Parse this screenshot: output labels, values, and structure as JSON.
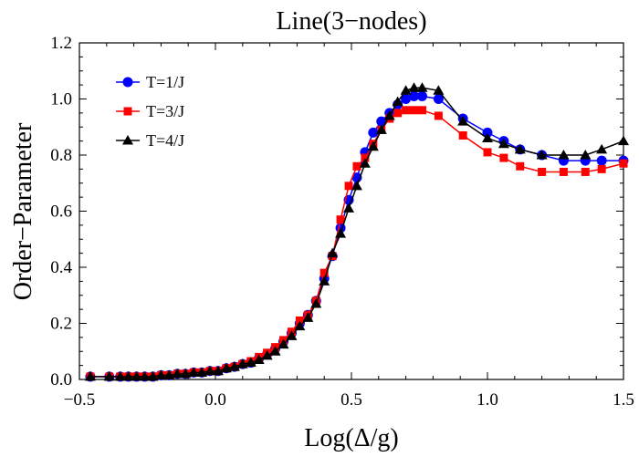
{
  "chart_data": {
    "type": "line",
    "title": "Line(3−nodes)",
    "xlabel": "Log(Δ/g)",
    "ylabel": "Order−Parameter",
    "xlim": [
      -0.5,
      1.5
    ],
    "ylim": [
      0.0,
      1.2
    ],
    "xticks": [
      {
        "value": -0.5,
        "label": "−0.5"
      },
      {
        "value": 0.0,
        "label": "0.0"
      },
      {
        "value": 0.5,
        "label": "0.5"
      },
      {
        "value": 1.0,
        "label": "1.0"
      },
      {
        "value": 1.5,
        "label": "1.5"
      }
    ],
    "yticks": [
      {
        "value": 0.0,
        "label": "0.0"
      },
      {
        "value": 0.2,
        "label": "0.2"
      },
      {
        "value": 0.4,
        "label": "0.4"
      },
      {
        "value": 0.6,
        "label": "0.6"
      },
      {
        "value": 0.8,
        "label": "0.8"
      },
      {
        "value": 1.0,
        "label": "1.0"
      },
      {
        "value": 1.2,
        "label": "1.2"
      }
    ],
    "grid": false,
    "legend_position": "top-left",
    "series": [
      {
        "name": "T=1/J",
        "color": "#0000ff",
        "marker": "circle",
        "x": [
          -0.46,
          -0.39,
          -0.35,
          -0.32,
          -0.29,
          -0.26,
          -0.23,
          -0.2,
          -0.17,
          -0.14,
          -0.11,
          -0.08,
          -0.05,
          -0.02,
          0.01,
          0.04,
          0.07,
          0.1,
          0.13,
          0.16,
          0.19,
          0.22,
          0.25,
          0.28,
          0.31,
          0.34,
          0.37,
          0.4,
          0.43,
          0.46,
          0.49,
          0.52,
          0.55,
          0.58,
          0.61,
          0.64,
          0.67,
          0.7,
          0.73,
          0.76,
          0.82,
          0.91,
          1.0,
          1.06,
          1.12,
          1.2,
          1.28,
          1.36,
          1.42,
          1.5
        ],
        "y": [
          0.01,
          0.01,
          0.01,
          0.01,
          0.01,
          0.01,
          0.01,
          0.015,
          0.015,
          0.02,
          0.02,
          0.025,
          0.025,
          0.03,
          0.03,
          0.04,
          0.045,
          0.055,
          0.06,
          0.075,
          0.09,
          0.11,
          0.135,
          0.165,
          0.2,
          0.23,
          0.28,
          0.36,
          0.44,
          0.54,
          0.64,
          0.72,
          0.81,
          0.88,
          0.92,
          0.95,
          0.98,
          1.0,
          1.01,
          1.01,
          1.0,
          0.93,
          0.88,
          0.85,
          0.82,
          0.8,
          0.78,
          0.78,
          0.78,
          0.78
        ]
      },
      {
        "name": "T=3/J",
        "color": "#ff0000",
        "marker": "square",
        "x": [
          -0.46,
          -0.39,
          -0.35,
          -0.32,
          -0.29,
          -0.26,
          -0.23,
          -0.2,
          -0.17,
          -0.14,
          -0.11,
          -0.08,
          -0.05,
          -0.02,
          0.01,
          0.04,
          0.07,
          0.1,
          0.13,
          0.16,
          0.19,
          0.22,
          0.25,
          0.28,
          0.31,
          0.34,
          0.37,
          0.4,
          0.43,
          0.46,
          0.49,
          0.52,
          0.55,
          0.58,
          0.61,
          0.64,
          0.67,
          0.7,
          0.73,
          0.76,
          0.82,
          0.91,
          1.0,
          1.06,
          1.12,
          1.2,
          1.28,
          1.36,
          1.42,
          1.5
        ],
        "y": [
          0.01,
          0.01,
          0.01,
          0.01,
          0.01,
          0.01,
          0.01,
          0.015,
          0.015,
          0.02,
          0.02,
          0.025,
          0.025,
          0.03,
          0.03,
          0.04,
          0.045,
          0.055,
          0.065,
          0.08,
          0.095,
          0.115,
          0.14,
          0.17,
          0.21,
          0.23,
          0.28,
          0.38,
          0.44,
          0.57,
          0.69,
          0.76,
          0.79,
          0.84,
          0.89,
          0.93,
          0.95,
          0.96,
          0.96,
          0.96,
          0.94,
          0.87,
          0.81,
          0.79,
          0.76,
          0.74,
          0.74,
          0.74,
          0.75,
          0.77
        ]
      },
      {
        "name": "T=4/J",
        "color": "#000000",
        "marker": "triangle",
        "x": [
          -0.46,
          -0.39,
          -0.35,
          -0.32,
          -0.29,
          -0.26,
          -0.23,
          -0.2,
          -0.17,
          -0.14,
          -0.11,
          -0.08,
          -0.05,
          -0.02,
          0.01,
          0.04,
          0.07,
          0.1,
          0.13,
          0.16,
          0.19,
          0.22,
          0.25,
          0.28,
          0.31,
          0.34,
          0.37,
          0.4,
          0.43,
          0.46,
          0.49,
          0.52,
          0.55,
          0.58,
          0.61,
          0.64,
          0.67,
          0.7,
          0.73,
          0.76,
          0.82,
          0.91,
          1.0,
          1.06,
          1.12,
          1.2,
          1.28,
          1.36,
          1.42,
          1.5
        ],
        "y": [
          0.01,
          0.01,
          0.01,
          0.01,
          0.01,
          0.01,
          0.01,
          0.015,
          0.015,
          0.02,
          0.02,
          0.025,
          0.025,
          0.03,
          0.03,
          0.04,
          0.045,
          0.055,
          0.06,
          0.07,
          0.085,
          0.1,
          0.125,
          0.155,
          0.19,
          0.22,
          0.27,
          0.35,
          0.45,
          0.52,
          0.61,
          0.69,
          0.77,
          0.83,
          0.89,
          0.94,
          0.99,
          1.03,
          1.04,
          1.04,
          1.03,
          0.92,
          0.86,
          0.84,
          0.82,
          0.8,
          0.8,
          0.8,
          0.82,
          0.85
        ]
      }
    ]
  }
}
